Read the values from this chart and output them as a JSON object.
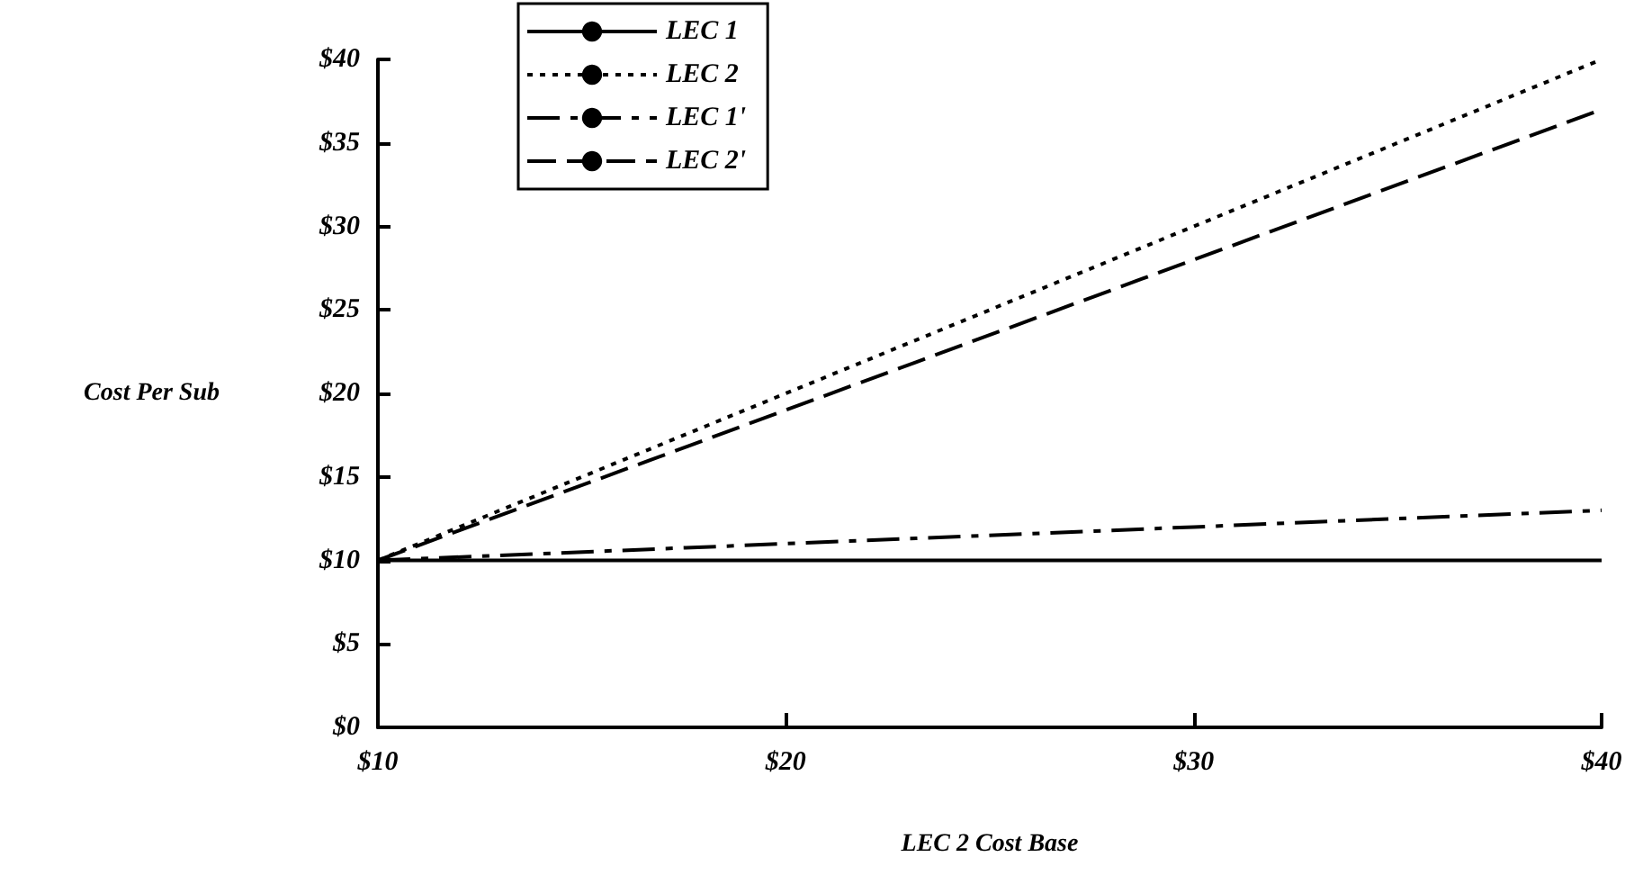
{
  "chart_data": {
    "type": "line",
    "xlabel": "LEC 2 Cost Base",
    "ylabel": "Cost Per Sub",
    "x": [
      10,
      20,
      30,
      40
    ],
    "series": [
      {
        "name": "LEC 1",
        "color": "#000000",
        "line_style": "solid",
        "values": [
          10,
          10,
          10,
          10
        ]
      },
      {
        "name": "LEC 2",
        "color": "#000000",
        "line_style": "dotted",
        "values": [
          10,
          20,
          30,
          40
        ]
      },
      {
        "name": "LEC 1'",
        "color": "#000000",
        "line_style": "dashdot",
        "values": [
          10,
          11,
          12,
          13
        ]
      },
      {
        "name": "LEC 2'",
        "color": "#000000",
        "line_style": "dashed",
        "values": [
          10,
          19,
          28,
          37
        ]
      }
    ],
    "xlim": [
      10,
      40
    ],
    "xticks": [
      {
        "value": 10,
        "label": "$10"
      },
      {
        "value": 20,
        "label": "$20"
      },
      {
        "value": 30,
        "label": "$30"
      },
      {
        "value": 40,
        "label": "$40"
      }
    ],
    "ylim": [
      0,
      40
    ],
    "yticks": [
      {
        "value": 0,
        "label": "$0"
      },
      {
        "value": 5,
        "label": "$5"
      },
      {
        "value": 10,
        "label": "$10"
      },
      {
        "value": 15,
        "label": "$15"
      },
      {
        "value": 20,
        "label": "$20"
      },
      {
        "value": 25,
        "label": "$25"
      },
      {
        "value": 30,
        "label": "$30"
      },
      {
        "value": 35,
        "label": "$35"
      },
      {
        "value": 40,
        "label": "$40"
      }
    ],
    "grid": false,
    "legend": "top left",
    "marker": "none"
  }
}
